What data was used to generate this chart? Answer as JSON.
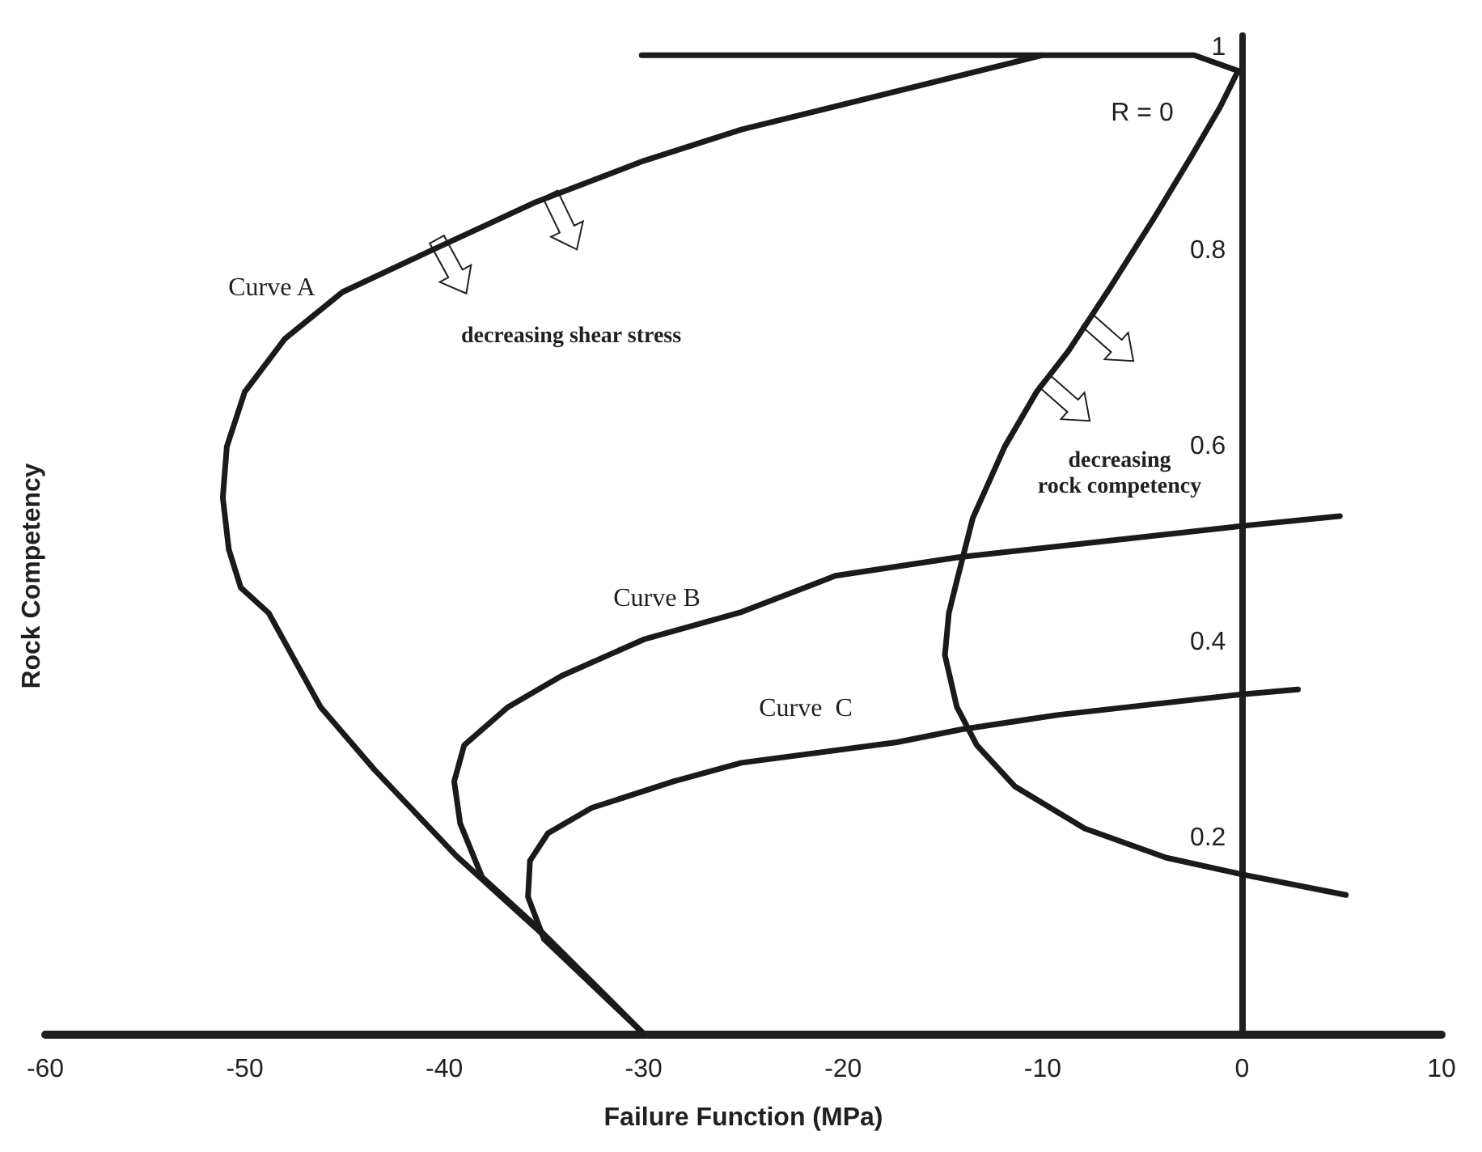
{
  "chart_data": {
    "type": "line",
    "xlabel": "Failure Function (MPa)",
    "ylabel": "Rock Competency",
    "xlim": [
      -60,
      10
    ],
    "xticks": [
      -60,
      -50,
      -40,
      -30,
      -20,
      -10,
      0,
      10
    ],
    "ylim": [
      0,
      1.02
    ],
    "yticks": [
      0.2,
      0.4,
      0.6,
      0.8,
      1
    ],
    "grid": false,
    "marker": "none",
    "line_style": "solid",
    "series": [
      {
        "color": "#1a1a1a",
        "x": [
          -10,
          -25.1,
          -30,
          -35.4,
          -40.7,
          -45.1,
          -48,
          -50,
          -50.9,
          -51.1,
          -50.8,
          -50.2,
          -48.8,
          -46.2,
          -43.5,
          -39.4,
          -35.4,
          -32.6,
          -30
        ],
        "values": [
          1,
          0.924,
          0.892,
          0.85,
          0.8,
          0.758,
          0.71,
          0.656,
          0.6,
          0.548,
          0.495,
          0.456,
          0.43,
          0.334,
          0.27,
          0.182,
          0.108,
          0.053,
          0
        ]
      },
      {
        "color": "#1a1a1a",
        "x": [
          -30,
          -35.4,
          -38.1,
          -39.2,
          -39.5,
          -39,
          -36.8,
          -34.1,
          -30,
          -25.1,
          -20.4,
          -14.2,
          -5.7,
          0,
          4.9
        ],
        "values": [
          0,
          0.11,
          0.16,
          0.215,
          0.258,
          0.295,
          0.334,
          0.366,
          0.403,
          0.431,
          0.468,
          0.487,
          0.506,
          0.519,
          0.529
        ]
      },
      {
        "color": "#1a1a1a",
        "x": [
          -30,
          -35,
          -35.8,
          -35.7,
          -34.8,
          -32.6,
          -28.5,
          -25.1,
          -17.3,
          -14.1,
          -9.2,
          0,
          2.8
        ],
        "values": [
          0,
          0.097,
          0.14,
          0.177,
          0.205,
          0.231,
          0.258,
          0.277,
          0.298,
          0.311,
          0.326,
          0.347,
          0.352
        ]
      },
      {
        "color": "#1a1a1a",
        "x": [
          -30.1,
          -2.4,
          -0.2,
          -1.1,
          -2.5,
          -4.4,
          -6.6,
          -8.7,
          -10.3,
          -11.9,
          -13.5,
          -14.3,
          -14.7,
          -14.9,
          -14.3,
          -13.3,
          -11.4,
          -7.9,
          -3.8,
          0,
          5.2
        ],
        "values": [
          1,
          1,
          0.984,
          0.947,
          0.898,
          0.834,
          0.763,
          0.698,
          0.656,
          0.6,
          0.527,
          0.463,
          0.43,
          0.387,
          0.334,
          0.295,
          0.253,
          0.21,
          0.18,
          0.163,
          0.142
        ]
      }
    ],
    "annotations": [
      "Curve A",
      "Curve B",
      "Curve  C",
      "R = 0",
      "decreasing shear stress",
      "decreasing\nrock competency"
    ]
  }
}
